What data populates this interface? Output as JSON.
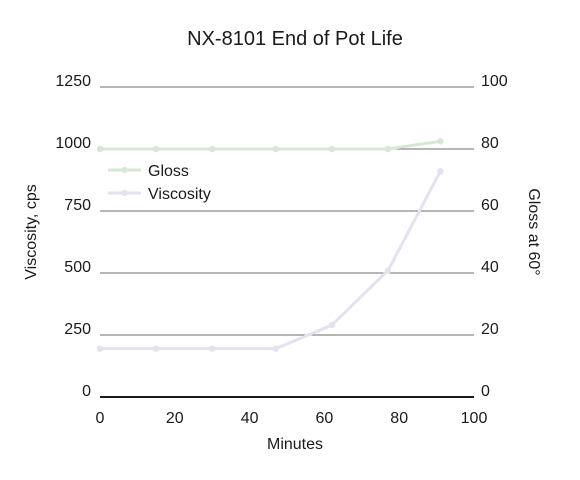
{
  "chart_data": {
    "type": "line",
    "title": "NX-8101 End of Pot Life",
    "xlabel": "Minutes",
    "ylabel": "Viscosity, cps",
    "y2label": "Gloss at 60°",
    "xlim": [
      0,
      100
    ],
    "ylim": [
      0,
      1250
    ],
    "y2lim": [
      0,
      100
    ],
    "xticks": [
      "0",
      "20",
      "40",
      "60",
      "80",
      "100"
    ],
    "yticks": [
      "0",
      "250",
      "500",
      "750",
      "1000",
      "1250"
    ],
    "y2ticks": [
      "0",
      "20",
      "40",
      "60",
      "80",
      "100"
    ],
    "grid": true,
    "legend_position": "upper-left",
    "series": [
      {
        "name": "Gloss",
        "axis": "right",
        "color": "#d6e8d3",
        "x": [
          0,
          15,
          30,
          47,
          62,
          77,
          91
        ],
        "values": [
          80,
          80,
          80,
          80,
          80,
          80,
          82.5
        ]
      },
      {
        "name": "Viscosity",
        "axis": "left",
        "color": "#e2e2f0",
        "x": [
          0,
          15,
          30,
          47,
          62,
          77,
          91
        ],
        "values": [
          195,
          195,
          195,
          195,
          290,
          510,
          910
        ]
      }
    ]
  }
}
